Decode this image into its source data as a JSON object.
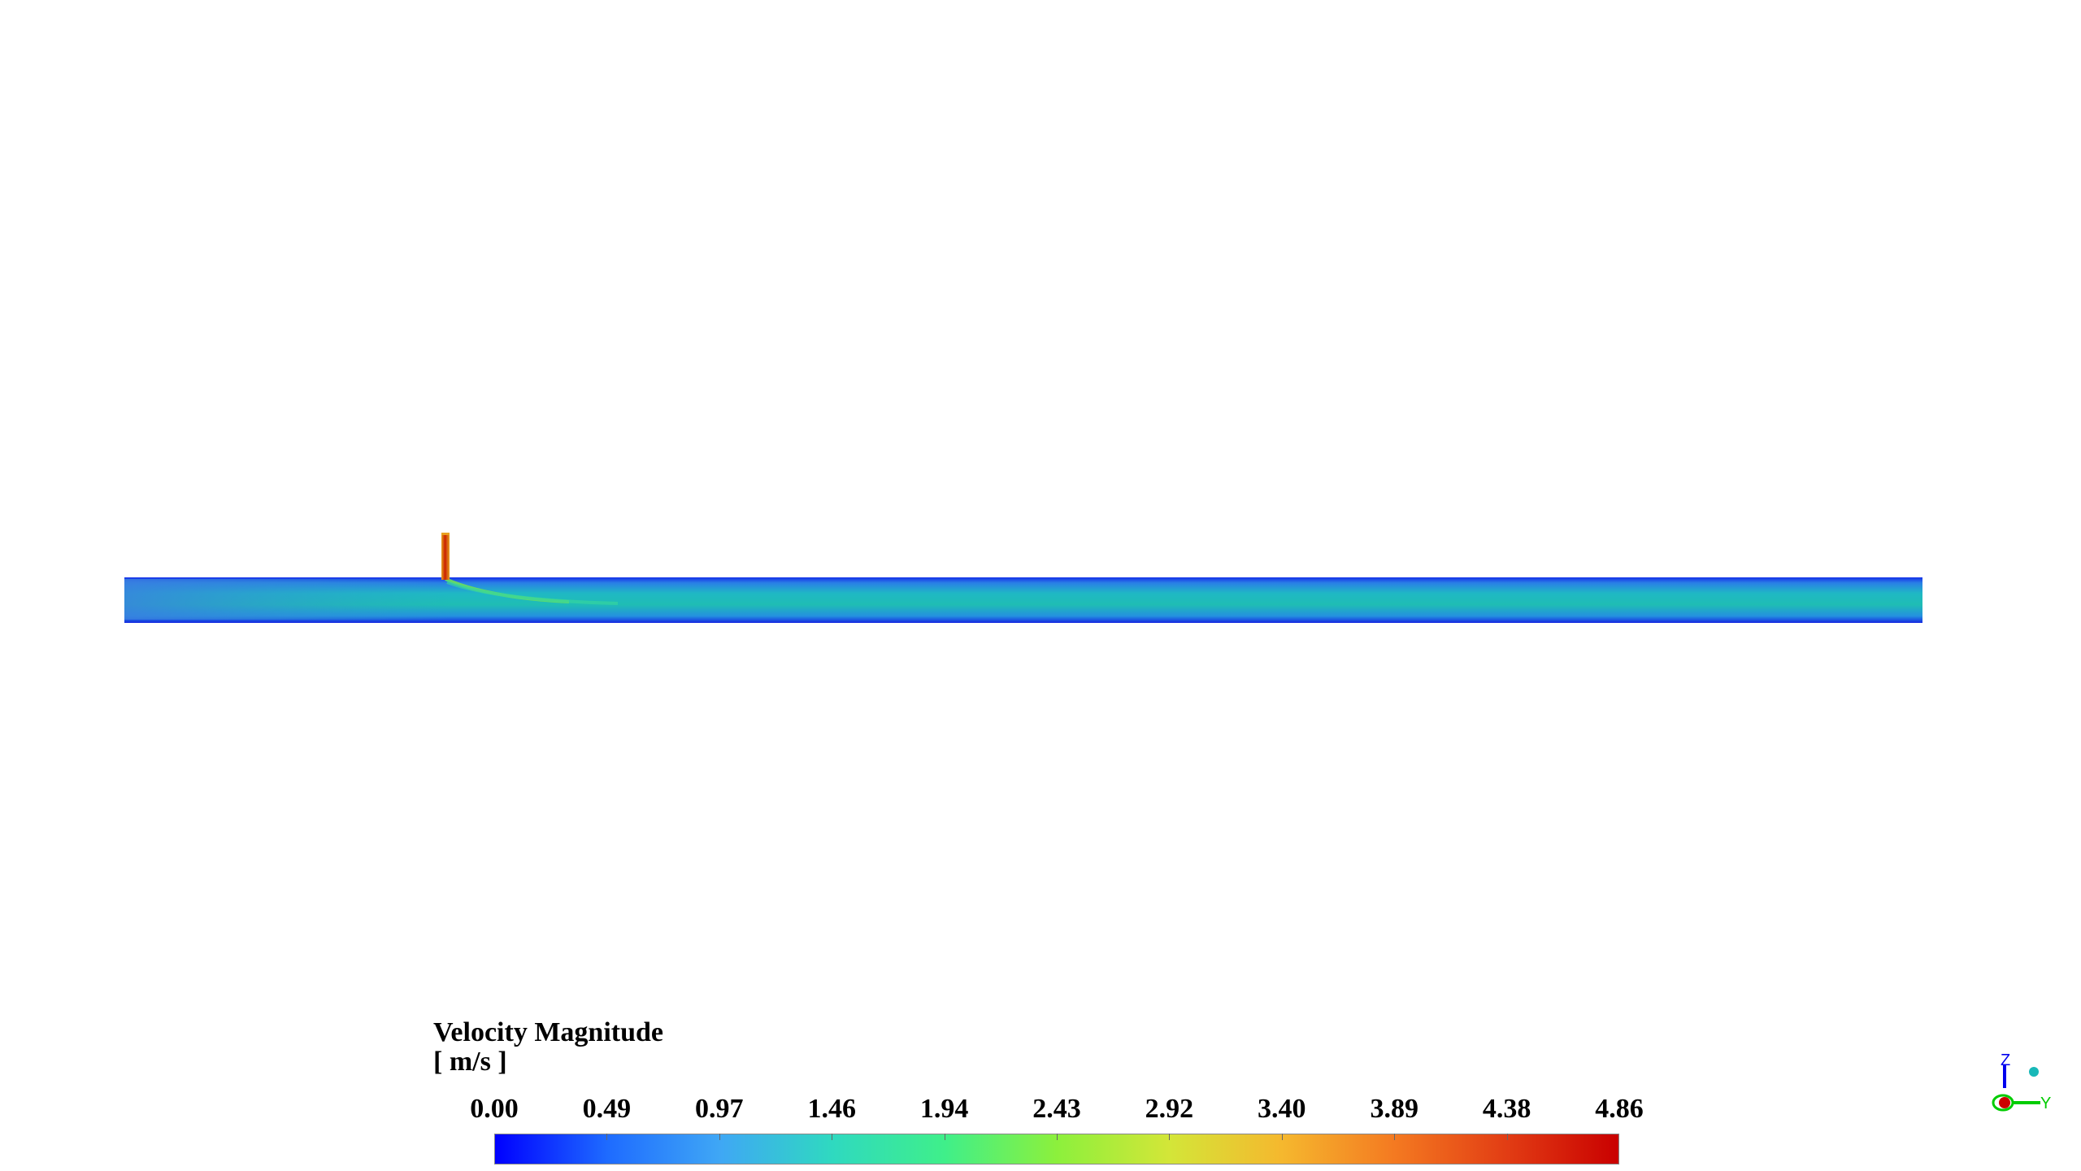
{
  "legend": {
    "title": "Velocity Magnitude",
    "units": "[ m/s ]",
    "min": 0.0,
    "max": 4.86,
    "ticks": [
      "0.00",
      "0.49",
      "0.97",
      "1.46",
      "1.94",
      "2.43",
      "2.92",
      "3.40",
      "3.89",
      "4.38",
      "4.86"
    ],
    "colormap": [
      "#0000ff",
      "#1e6bff",
      "#3fa7f5",
      "#2fd9c0",
      "#3fef8a",
      "#8cf03c",
      "#d3e638",
      "#f5b82e",
      "#f47a21",
      "#e23d14",
      "#c90000"
    ]
  },
  "triad": {
    "axes": [
      "Z",
      "Y"
    ]
  }
}
